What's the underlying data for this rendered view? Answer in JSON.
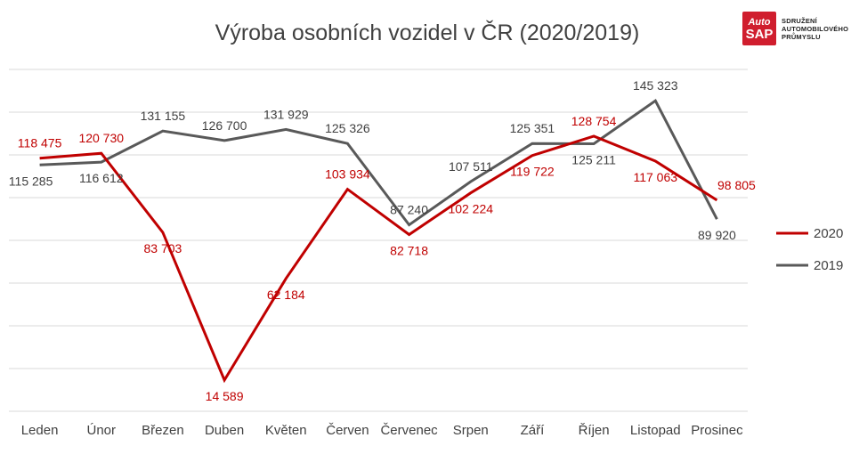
{
  "chart_data": {
    "type": "line",
    "title": "Výroba osobních vozidel v ČR (2020/2019)",
    "categories": [
      "Leden",
      "Únor",
      "Březen",
      "Duben",
      "Květen",
      "Červen",
      "Červenec",
      "Srpen",
      "Září",
      "Říjen",
      "Listopad",
      "Prosinec"
    ],
    "series": [
      {
        "name": "2020",
        "color": "#c00000",
        "values": [
          118475,
          120730,
          83703,
          14589,
          62184,
          103934,
          82718,
          102224,
          119722,
          128754,
          117063,
          98805
        ],
        "labels": [
          "118 475",
          "120 730",
          "83 703",
          "14 589",
          "62 184",
          "103 934",
          "82 718",
          "102 224",
          "119 722",
          "128 754",
          "117 063",
          "98 805"
        ]
      },
      {
        "name": "2019",
        "color": "#595959",
        "values": [
          115285,
          116612,
          131155,
          126700,
          131929,
          125326,
          87240,
          107511,
          125351,
          125211,
          145323,
          89920
        ],
        "labels": [
          "115 285",
          "116 612",
          "131 155",
          "126 700",
          "131 929",
          "125 326",
          "87 240",
          "107 511",
          "125 351",
          "125 211",
          "145 323",
          "89 920"
        ]
      }
    ],
    "ylim": [
      0,
      160000
    ],
    "grid": true,
    "legend": "right"
  },
  "logo": {
    "line1": "Auto",
    "line2": "SAP",
    "text1": "SDRUŽENÍ",
    "text2": "AUTOMOBILOVÉHO",
    "text3": "PRŮMYSLU"
  }
}
